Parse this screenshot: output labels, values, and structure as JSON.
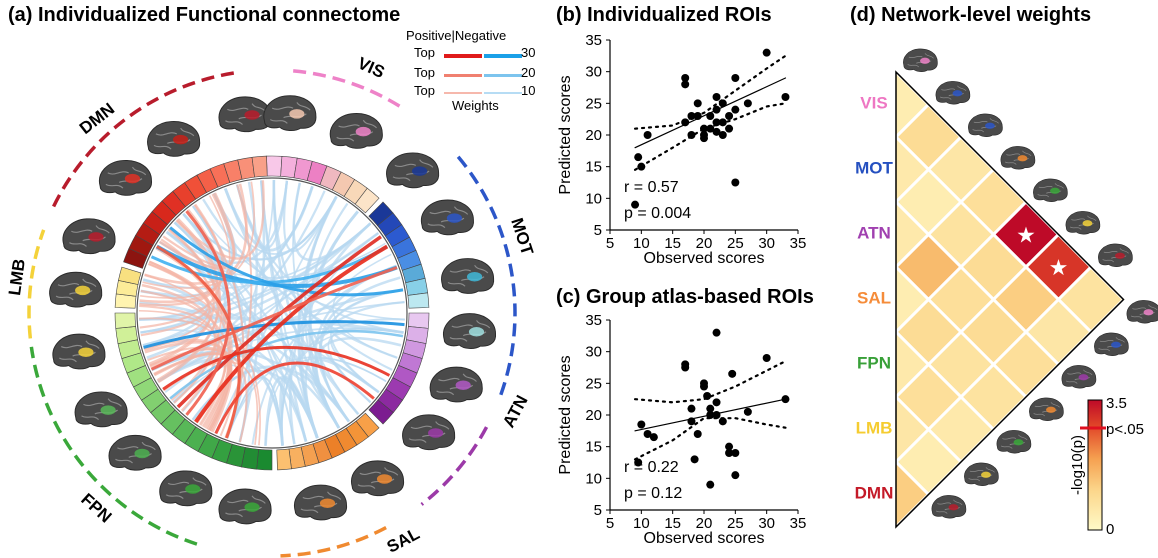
{
  "panel_a": {
    "title": "(a) Individualized Functional connectome",
    "legend": {
      "header_pos": "Positive",
      "header_neg": "Negative",
      "rows": [
        {
          "label": "Top",
          "value": "30"
        },
        {
          "label": "Top",
          "value": "20"
        },
        {
          "label": "Top",
          "value": "10"
        }
      ],
      "footer": "Weights"
    },
    "networks": [
      {
        "name": "VIS",
        "color": "#ee82c8"
      },
      {
        "name": "MOT",
        "color": "#2c56c8"
      },
      {
        "name": "ATN",
        "color": "#9c3aa8"
      },
      {
        "name": "SAL",
        "color": "#f08a30"
      },
      {
        "name": "FPN",
        "color": "#3aa83a"
      },
      {
        "name": "LMB",
        "color": "#f4d23a"
      },
      {
        "name": "DMN",
        "color": "#b81c2c"
      }
    ]
  },
  "panel_b": {
    "title": "(b) Individualized  ROIs",
    "stat_r": "r  = 0.57",
    "stat_p": "p = 0.004"
  },
  "panel_c": {
    "title": "(c) Group atlas-based ROIs",
    "stat_r": "r = 0.22",
    "stat_p": "p = 0.12"
  },
  "panel_d": {
    "title": "(d) Network-level weights",
    "labels": [
      {
        "name": "VIS",
        "color": "#ee77c3"
      },
      {
        "name": "MOT",
        "color": "#2550c0"
      },
      {
        "name": "ATN",
        "color": "#a040b0"
      },
      {
        "name": "SAL",
        "color": "#f58c3a"
      },
      {
        "name": "FPN",
        "color": "#38a038"
      },
      {
        "name": "LMB",
        "color": "#f5cc30"
      },
      {
        "name": "DMN",
        "color": "#c41a28"
      }
    ],
    "colorbar": {
      "max": "3.5",
      "threshold": "p<.05",
      "min": "0",
      "label": "-log10(p)"
    },
    "matrix_log10p": [
      [
        0.4
      ],
      [
        0.9,
        0.5
      ],
      [
        0.6,
        0.4,
        0.5
      ],
      [
        0.8,
        0.7,
        1.5,
        0.4
      ],
      [
        3.5,
        0.9,
        0.8,
        0.9,
        0.5
      ],
      [
        3.0,
        1.2,
        0.9,
        0.7,
        0.8,
        0.6
      ],
      [
        0.7,
        0.6,
        0.8,
        0.7,
        0.5,
        0.4,
        1.2
      ]
    ],
    "significant": [
      [
        4,
        0
      ],
      [
        5,
        0
      ]
    ]
  },
  "chart_data": [
    {
      "type": "scatter",
      "title": "(b) Individualized  ROIs",
      "xlabel": "Observed scores",
      "ylabel": "Predicted scores",
      "xlim": [
        5,
        35
      ],
      "ylim": [
        5,
        35
      ],
      "xticks": [
        5,
        10,
        15,
        20,
        25,
        30,
        35
      ],
      "yticks": [
        5,
        10,
        15,
        20,
        25,
        30,
        35
      ],
      "points": [
        [
          9,
          9
        ],
        [
          9.5,
          16.5
        ],
        [
          10,
          15
        ],
        [
          11,
          20
        ],
        [
          17,
          29
        ],
        [
          17,
          28
        ],
        [
          17,
          22
        ],
        [
          18,
          23
        ],
        [
          18,
          20
        ],
        [
          19,
          25
        ],
        [
          19,
          23
        ],
        [
          20,
          21
        ],
        [
          20,
          20
        ],
        [
          20,
          19.5
        ],
        [
          21,
          23
        ],
        [
          21,
          21
        ],
        [
          22,
          26
        ],
        [
          22,
          24
        ],
        [
          22,
          22
        ],
        [
          22,
          20.5
        ],
        [
          23,
          25
        ],
        [
          23,
          22
        ],
        [
          23,
          20
        ],
        [
          24,
          23
        ],
        [
          24,
          21
        ],
        [
          25,
          24
        ],
        [
          25,
          12.5
        ],
        [
          25,
          29
        ],
        [
          27,
          25
        ],
        [
          30,
          33
        ],
        [
          33,
          26
        ]
      ],
      "fit": [
        [
          9,
          18
        ],
        [
          33,
          29
        ]
      ],
      "ci_upper": [
        [
          9,
          21
        ],
        [
          15,
          21.5
        ],
        [
          20,
          23.5
        ],
        [
          25,
          27
        ],
        [
          30,
          30.5
        ],
        [
          33,
          32.5
        ]
      ],
      "ci_lower": [
        [
          9,
          14.5
        ],
        [
          15,
          18
        ],
        [
          20,
          21
        ],
        [
          25,
          22.5
        ],
        [
          30,
          24.5
        ],
        [
          33,
          25
        ]
      ]
    },
    {
      "type": "scatter",
      "title": "(c) Group atlas-based ROIs",
      "xlabel": "Observed scores",
      "ylabel": "Predicted scores",
      "xlim": [
        5,
        35
      ],
      "ylim": [
        5,
        35
      ],
      "xticks": [
        5,
        10,
        15,
        20,
        25,
        30,
        35
      ],
      "yticks": [
        5,
        10,
        15,
        20,
        25,
        30,
        35
      ],
      "points": [
        [
          9.5,
          12.5
        ],
        [
          10,
          18.5
        ],
        [
          11,
          17
        ],
        [
          12,
          16.5
        ],
        [
          17,
          28
        ],
        [
          17,
          27.5
        ],
        [
          18,
          21
        ],
        [
          18,
          19
        ],
        [
          18.5,
          13
        ],
        [
          19,
          17
        ],
        [
          20,
          25
        ],
        [
          20,
          24.5
        ],
        [
          20.5,
          23
        ],
        [
          21,
          21
        ],
        [
          21,
          20
        ],
        [
          21,
          9
        ],
        [
          22,
          33
        ],
        [
          22,
          22
        ],
        [
          22,
          20
        ],
        [
          23,
          19
        ],
        [
          24,
          15
        ],
        [
          24,
          14
        ],
        [
          24.5,
          26.5
        ],
        [
          25,
          14
        ],
        [
          25,
          10.5
        ],
        [
          27,
          20.5
        ],
        [
          30,
          29
        ],
        [
          33,
          22.5
        ]
      ],
      "fit": [
        [
          9,
          17.5
        ],
        [
          33,
          22.5
        ]
      ],
      "ci_upper": [
        [
          9,
          22.5
        ],
        [
          15,
          22
        ],
        [
          20,
          22.5
        ],
        [
          25,
          24.5
        ],
        [
          30,
          27
        ],
        [
          33,
          28.5
        ]
      ],
      "ci_lower": [
        [
          9,
          13
        ],
        [
          15,
          16
        ],
        [
          20,
          19.5
        ],
        [
          25,
          19.5
        ],
        [
          30,
          18.5
        ],
        [
          33,
          18
        ]
      ]
    }
  ]
}
